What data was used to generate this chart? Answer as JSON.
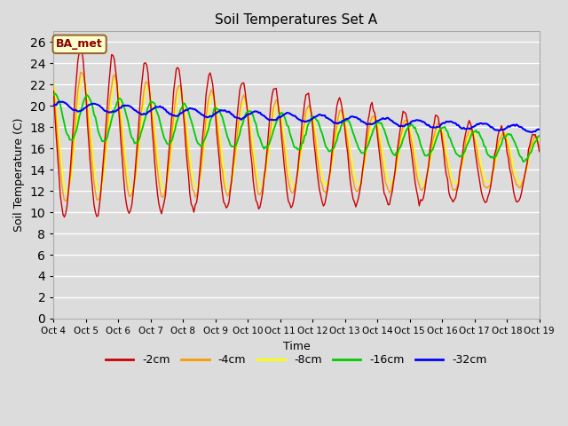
{
  "title": "Soil Temperatures Set A",
  "xlabel": "Time",
  "ylabel": "Soil Temperature (C)",
  "ylim": [
    0,
    27
  ],
  "yticks": [
    0,
    2,
    4,
    6,
    8,
    10,
    12,
    14,
    16,
    18,
    20,
    22,
    24,
    26
  ],
  "colors": {
    "-2cm": "#cc0000",
    "-4cm": "#ff9900",
    "-8cm": "#ffff00",
    "-16cm": "#00cc00",
    "-32cm": "#0000ff"
  },
  "annotation_text": "BA_met",
  "background_color": "#dcdcdc",
  "grid_color": "#ffffff",
  "x_start": 4.0,
  "x_end": 19.0,
  "pts_per_day": 24,
  "xtick_positions": [
    4,
    5,
    6,
    7,
    8,
    9,
    10,
    11,
    12,
    13,
    14,
    15,
    16,
    17,
    18,
    19
  ],
  "xtick_labels": [
    "Oct 4",
    "Oct 5",
    "Oct 6",
    "Oct 7",
    "Oct 8",
    "Oct 9",
    "Oct 10",
    "Oct 11",
    "Oct 12",
    "Oct 13",
    "Oct 14",
    "Oct 15",
    "Oct 16",
    "Oct 17",
    "Oct 18",
    "Oct 19"
  ]
}
